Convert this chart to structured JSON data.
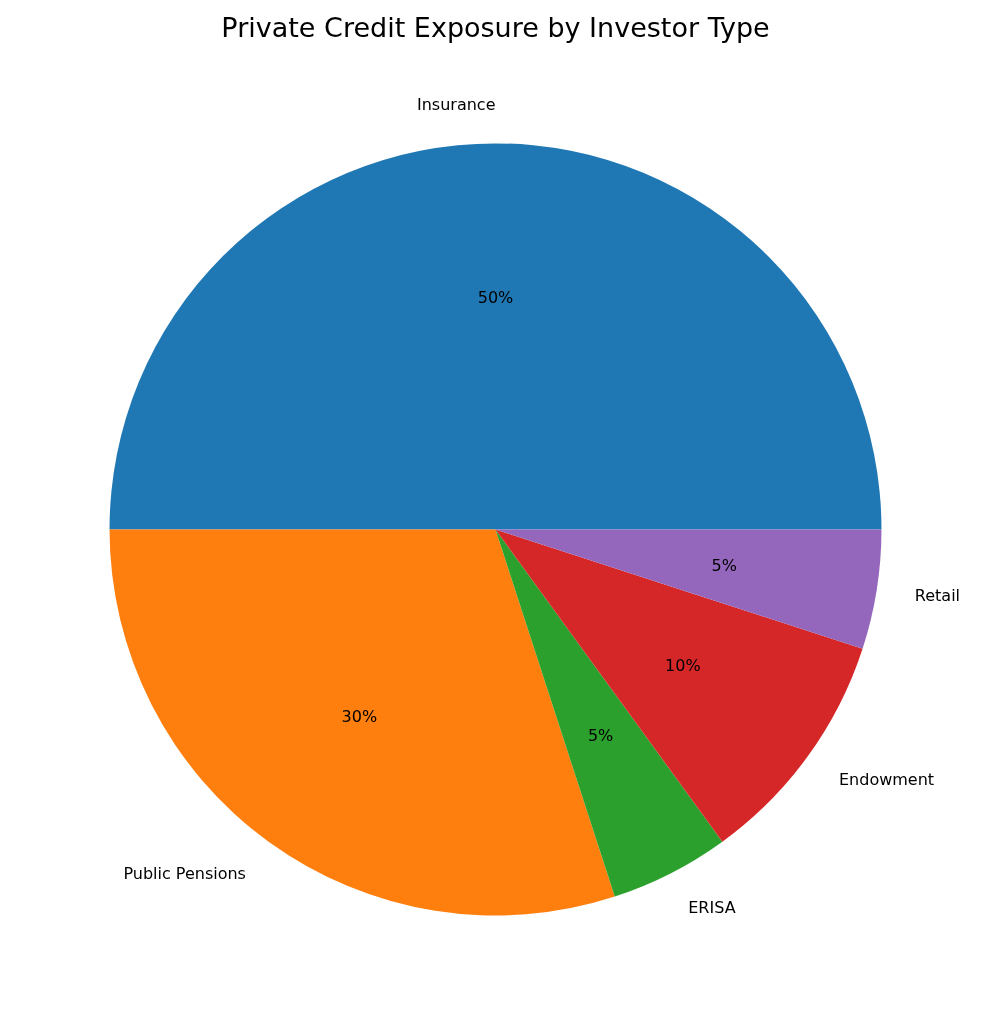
{
  "chart_data": {
    "type": "pie",
    "title": "Private Credit Exposure by Investor Type",
    "categories": [
      "Insurance",
      "Public Pensions",
      "ERISA",
      "Endowment",
      "Retail"
    ],
    "values": [
      50,
      30,
      5,
      10,
      5
    ],
    "colors": [
      "#1f77b4",
      "#ff7f0e",
      "#2ca02c",
      "#d62728",
      "#9467bd"
    ],
    "value_labels": [
      "50%",
      "30%",
      "5%",
      "10%",
      "5%"
    ]
  }
}
